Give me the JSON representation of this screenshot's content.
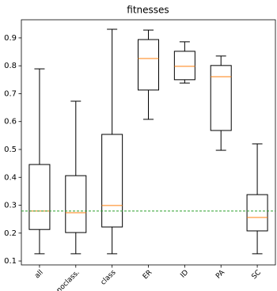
{
  "chart_data": {
    "type": "box",
    "title": "fitnesses",
    "categories": [
      "all",
      "noclass.",
      "class",
      "ER",
      "ID",
      "PA",
      "SC"
    ],
    "boxes": [
      {
        "low": 0.126,
        "q1": 0.213,
        "median": 0.279,
        "q3": 0.446,
        "high": 0.789
      },
      {
        "low": 0.126,
        "q1": 0.202,
        "median": 0.273,
        "q3": 0.406,
        "high": 0.673
      },
      {
        "low": 0.126,
        "q1": 0.222,
        "median": 0.299,
        "q3": 0.554,
        "high": 0.931
      },
      {
        "low": 0.608,
        "q1": 0.713,
        "median": 0.826,
        "q3": 0.894,
        "high": 0.928
      },
      {
        "low": 0.738,
        "q1": 0.75,
        "median": 0.798,
        "q3": 0.852,
        "high": 0.886
      },
      {
        "low": 0.497,
        "q1": 0.568,
        "median": 0.761,
        "q3": 0.801,
        "high": 0.835
      },
      {
        "low": 0.126,
        "q1": 0.208,
        "median": 0.256,
        "q3": 0.338,
        "high": 0.52
      }
    ],
    "color": "#000000",
    "median_color": "#ff7f0e",
    "reference_line": {
      "value": 0.279,
      "color": "#2ca02c"
    },
    "ylim": [
      0.086,
      0.965
    ],
    "yticks": [
      0.1,
      0.2,
      0.3,
      0.4,
      0.5,
      0.6,
      0.7,
      0.8,
      0.9
    ]
  }
}
